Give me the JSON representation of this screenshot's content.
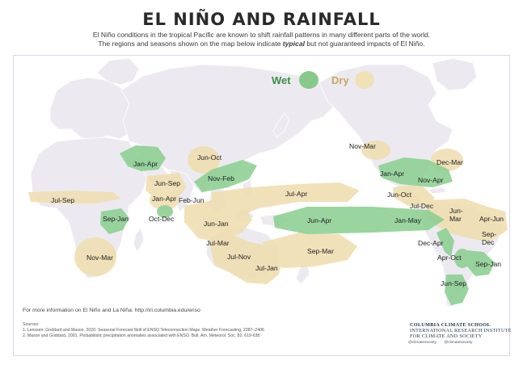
{
  "title": "EL NIÑO AND RAINFALL",
  "subtitle": {
    "line1": "El Niño conditions in the tropical Pacific are known to shift rainfall patterns in many different parts of the world.",
    "line2_pre": "The regions and seasons shown on the map below indicate ",
    "line2_em": "typical",
    "line2_post": " but not guaranteed impacts of El Niño."
  },
  "legend": {
    "wet": {
      "label": "Wet",
      "color": "#86c98b"
    },
    "dry": {
      "label": "Dry",
      "color": "#f1e1b8"
    }
  },
  "colors": {
    "land": "#eceaf0",
    "wet_fill": "#8ccf92",
    "dry_fill": "#f0deb0",
    "wet_text": "#3b8c43",
    "dry_text": "#c9a760"
  },
  "regions": [
    {
      "type": "wet",
      "label": "Jan-Apr"
    },
    {
      "type": "dry",
      "label": "Jun-Oct"
    },
    {
      "type": "wet",
      "label": "Nov-Feb"
    },
    {
      "type": "dry",
      "label": "Jun-Sep"
    },
    {
      "type": "dry",
      "label": "Jul-Sep"
    },
    {
      "type": "dry",
      "label": "Jan-Apr"
    },
    {
      "type": "dry",
      "label": "Feb-Jun"
    },
    {
      "type": "wet",
      "label": "Oct-Dec"
    },
    {
      "type": "wet",
      "label": "Sep-Jan"
    },
    {
      "type": "dry",
      "label": "Nov-Mar"
    },
    {
      "type": "dry",
      "label": "Jul-Apr"
    },
    {
      "type": "dry",
      "label": "Jun-Jan"
    },
    {
      "type": "dry",
      "label": "Jul-Mar"
    },
    {
      "type": "dry",
      "label": "Jul-Nov"
    },
    {
      "type": "dry",
      "label": "Jul-Jan"
    },
    {
      "type": "dry",
      "label": "Sep-Mar"
    },
    {
      "type": "wet",
      "label": "Jun-Apr"
    },
    {
      "type": "wet",
      "label": "Jan-May"
    },
    {
      "type": "dry",
      "label": "Nov-Mar"
    },
    {
      "type": "dry",
      "label": "Dec-Mar"
    },
    {
      "type": "wet",
      "label": "Jan-Apr"
    },
    {
      "type": "wet",
      "label": "Nov-Apr"
    },
    {
      "type": "dry",
      "label": "Jun-Oct"
    },
    {
      "type": "dry",
      "label": "Jul-Dec"
    },
    {
      "type": "dry",
      "label": "Jun-Mar"
    },
    {
      "type": "dry",
      "label": "Apr-Jun"
    },
    {
      "type": "dry",
      "label": "Sep-Dec"
    },
    {
      "type": "wet",
      "label": "Dec-Apr"
    },
    {
      "type": "wet",
      "label": "Apr-Oct"
    },
    {
      "type": "wet",
      "label": "Sep-Jan"
    },
    {
      "type": "wet",
      "label": "Jun-Sep"
    }
  ],
  "info": "For more information on El Niño and La Niña: http://iri.columbia.edu/enso",
  "sources": {
    "heading": "Sources:",
    "s1": "1. Lenssen, Goddard and Mason, 2020. Seasonal Forecast Skill of ENSO Teleconnection Maps. Weather Forecasting, 2387–2406",
    "s2": "2. Mason and Goddard, 2001. Probabilistic precipitation anomalies associated with ENSO. Bull. Am. Meteorol. Soc. 82, 619-638"
  },
  "logo": {
    "line1": "COLUMBIA CLIMATE SCHOOL",
    "line2": "INTERNATIONAL RESEARCH INSTITUTE",
    "line3": "FOR CLIMATE AND SOCIETY"
  },
  "social": {
    "a": "@climatesociety",
    "b": "@climatesociety"
  }
}
